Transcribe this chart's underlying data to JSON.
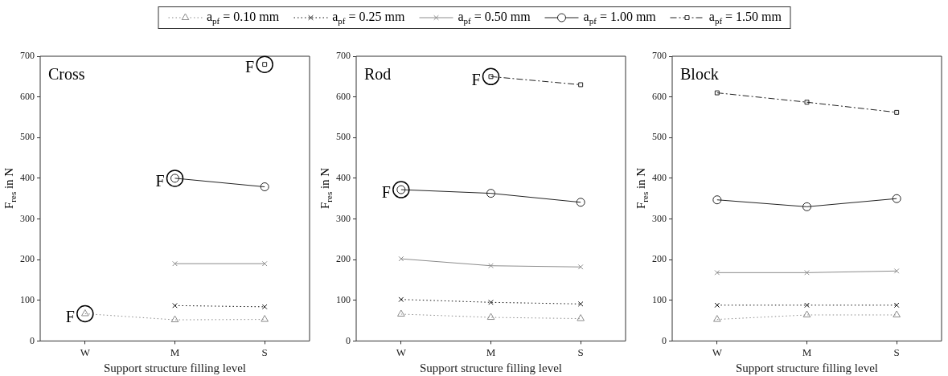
{
  "chart_data": [
    {
      "type": "line",
      "title": "Cross",
      "xlabel": "Support structure filling level",
      "ylabel": "F$_{res}$ in N",
      "categories": [
        "W",
        "M",
        "S"
      ],
      "ylim": [
        0,
        700
      ],
      "yticks": [
        0,
        100,
        200,
        300,
        400,
        500,
        600,
        700
      ],
      "grid": false,
      "legend": "top",
      "series": [
        {
          "name": "a$_{pf}$ = 0.10 mm",
          "color": "#8c8c8c",
          "marker": "triangle",
          "line_style": "dotted",
          "values": [
            67,
            52,
            53
          ]
        },
        {
          "name": "a$_{pf}$ = 0.25 mm",
          "color": "#111111",
          "marker": "cross",
          "line_style": "dotted",
          "values": [
            null,
            87,
            84
          ]
        },
        {
          "name": "a$_{pf}$ = 0.50 mm",
          "color": "#8c8c8c",
          "marker": "cross",
          "line_style": "solid",
          "values": [
            null,
            190,
            190
          ]
        },
        {
          "name": "a$_{pf}$ = 1.00 mm",
          "color": "#222222",
          "marker": "circle",
          "line_style": "solid",
          "values": [
            null,
            400,
            379
          ]
        },
        {
          "name": "a$_{pf}$ = 1.50 mm",
          "color": "#222222",
          "marker": "square",
          "line_style": "dashed",
          "values": [
            null,
            null,
            680
          ]
        }
      ],
      "annotations": [
        {
          "text": "F",
          "x": "W",
          "y": 67
        },
        {
          "text": "F",
          "x": "M",
          "y": 400
        },
        {
          "text": "F",
          "x": "S",
          "y": 680
        }
      ]
    },
    {
      "type": "line",
      "title": "Rod",
      "xlabel": "Support structure filling level",
      "ylabel": "F$_{res}$ in N",
      "categories": [
        "W",
        "M",
        "S"
      ],
      "ylim": [
        0,
        700
      ],
      "yticks": [
        0,
        100,
        200,
        300,
        400,
        500,
        600,
        700
      ],
      "grid": false,
      "series": [
        {
          "color": "#8c8c8c",
          "marker": "triangle",
          "line_style": "dotted",
          "values": [
            66,
            58,
            55
          ]
        },
        {
          "color": "#111111",
          "marker": "cross",
          "line_style": "dotted",
          "values": [
            102,
            95,
            91
          ]
        },
        {
          "color": "#8c8c8c",
          "marker": "cross",
          "line_style": "solid",
          "values": [
            202,
            185,
            182
          ]
        },
        {
          "color": "#222222",
          "marker": "circle",
          "line_style": "solid",
          "values": [
            372,
            363,
            341
          ]
        },
        {
          "color": "#222222",
          "marker": "square",
          "line_style": "dashed",
          "values": [
            null,
            650,
            630
          ]
        }
      ],
      "annotations": [
        {
          "text": "F",
          "x": "W",
          "y": 372
        },
        {
          "text": "F",
          "x": "M",
          "y": 650
        }
      ]
    },
    {
      "type": "line",
      "title": "Block",
      "xlabel": "Support structure filling level",
      "ylabel": "F$_{res}$ in N",
      "categories": [
        "W",
        "M",
        "S"
      ],
      "ylim": [
        0,
        700
      ],
      "yticks": [
        0,
        100,
        200,
        300,
        400,
        500,
        600,
        700
      ],
      "grid": false,
      "series": [
        {
          "color": "#8c8c8c",
          "marker": "triangle",
          "line_style": "dotted",
          "values": [
            53,
            64,
            64
          ]
        },
        {
          "color": "#111111",
          "marker": "cross",
          "line_style": "dotted",
          "values": [
            88,
            88,
            88
          ]
        },
        {
          "color": "#8c8c8c",
          "marker": "cross",
          "line_style": "solid",
          "values": [
            168,
            168,
            172
          ]
        },
        {
          "color": "#222222",
          "marker": "circle",
          "line_style": "solid",
          "values": [
            347,
            330,
            350
          ]
        },
        {
          "color": "#222222",
          "marker": "square",
          "line_style": "dashed",
          "values": [
            610,
            587,
            562
          ]
        }
      ]
    }
  ]
}
